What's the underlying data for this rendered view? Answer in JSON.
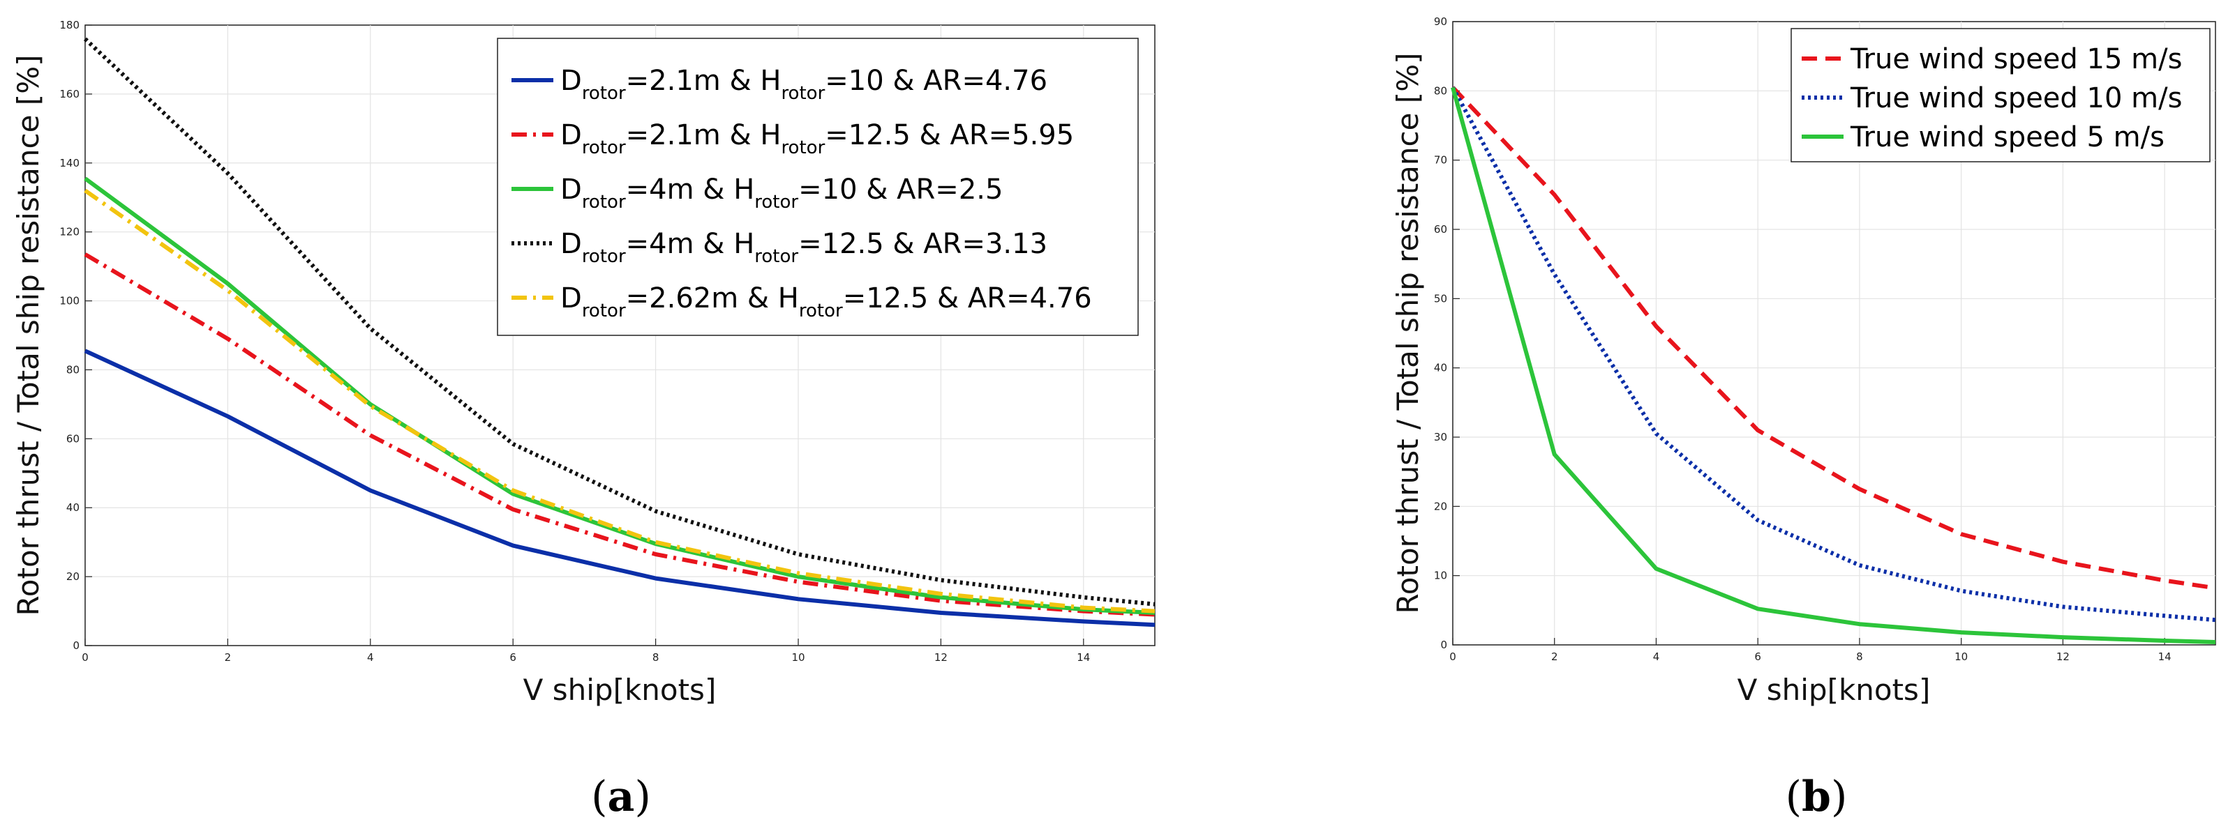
{
  "chart_data": [
    {
      "type": "line",
      "panel_label": "a",
      "xlabel": "V ship[knots]",
      "ylabel": "Rotor thrust / Total ship resistance [%]",
      "xlim": [
        0,
        15
      ],
      "ylim": [
        0,
        180
      ],
      "xticks": [
        0,
        2,
        4,
        6,
        8,
        10,
        12,
        14
      ],
      "yticks": [
        0,
        20,
        40,
        60,
        80,
        100,
        120,
        140,
        160,
        180
      ],
      "grid": true,
      "legend_position": "top-right",
      "x": [
        0,
        2,
        4,
        6,
        8,
        10,
        12,
        14,
        15
      ],
      "series": [
        {
          "name": "D_rotor=2.1m & H_rotor=10 & AR=4.76",
          "legend": [
            "D",
            "rotor",
            "=2.1m & H",
            "rotor",
            "=10 & AR=4.76"
          ],
          "color": "#0b2fa8",
          "style": "solid",
          "values": [
            85.5,
            66.5,
            45,
            29,
            19.5,
            13.5,
            9.5,
            7,
            6
          ]
        },
        {
          "name": "D_rotor=2.1m & H_rotor=12.5 & AR=5.95",
          "legend": [
            "D",
            "rotor",
            "=2.1m & H",
            "rotor",
            "=12.5 & AR=5.95"
          ],
          "color": "#e8141c",
          "style": "dashdot",
          "values": [
            113.5,
            89,
            61,
            39.5,
            26.5,
            18.5,
            13,
            10,
            9
          ]
        },
        {
          "name": "D_rotor=4m & H_rotor=10 & AR=2.5",
          "legend": [
            "D",
            "rotor",
            "=4m & H",
            "rotor",
            "=10 & AR=2.5"
          ],
          "color": "#2cc43a",
          "style": "solid",
          "values": [
            135.5,
            105,
            70,
            44,
            29.5,
            20,
            14,
            10.5,
            9.5
          ]
        },
        {
          "name": "D_rotor=4m & H_rotor=12.5 & AR=3.13",
          "legend": [
            "D",
            "rotor",
            "=4m & H",
            "rotor",
            "=12.5 & AR=3.13"
          ],
          "color": "#111111",
          "style": "dotted",
          "values": [
            176,
            137,
            92,
            58.5,
            39,
            26.5,
            19,
            14,
            12
          ]
        },
        {
          "name": "D_rotor=2.62m & H_rotor=12.5 & AR=4.76",
          "legend": [
            "D",
            "rotor",
            "=2.62m & H",
            "rotor",
            "=12.5 & AR=4.76"
          ],
          "color": "#f2c40f",
          "style": "dashdot",
          "values": [
            132,
            103,
            69.5,
            45,
            30,
            21,
            15,
            11,
            10
          ]
        }
      ]
    },
    {
      "type": "line",
      "panel_label": "b",
      "xlabel": "V ship[knots]",
      "ylabel": "Rotor thrust / Total ship resistance [%]",
      "xlim": [
        0,
        15
      ],
      "ylim": [
        0,
        90
      ],
      "xticks": [
        0,
        2,
        4,
        6,
        8,
        10,
        12,
        14
      ],
      "yticks": [
        0,
        10,
        20,
        30,
        40,
        50,
        60,
        70,
        80,
        90
      ],
      "grid": true,
      "legend_position": "top-right",
      "x": [
        0,
        2,
        4,
        6,
        8,
        10,
        12,
        14,
        15
      ],
      "series": [
        {
          "name": "True wind speed 15 m/s",
          "color": "#e8141c",
          "style": "dashed",
          "values": [
            80.5,
            65,
            46,
            31,
            22.5,
            16,
            12,
            9.3,
            8.2
          ]
        },
        {
          "name": "True wind speed 10 m/s",
          "color": "#0b2fa8",
          "style": "dotted",
          "values": [
            80.5,
            53.5,
            30.5,
            18,
            11.5,
            7.8,
            5.5,
            4.2,
            3.6
          ]
        },
        {
          "name": "True wind speed 5 m/s",
          "color": "#2cc43a",
          "style": "solid",
          "values": [
            80.5,
            27.5,
            11,
            5.2,
            3,
            1.8,
            1.1,
            0.6,
            0.4
          ]
        }
      ]
    }
  ],
  "captions": [
    {
      "open": "(",
      "letter": "a",
      "close": ")"
    },
    {
      "open": "(",
      "letter": "b",
      "close": ")"
    }
  ]
}
